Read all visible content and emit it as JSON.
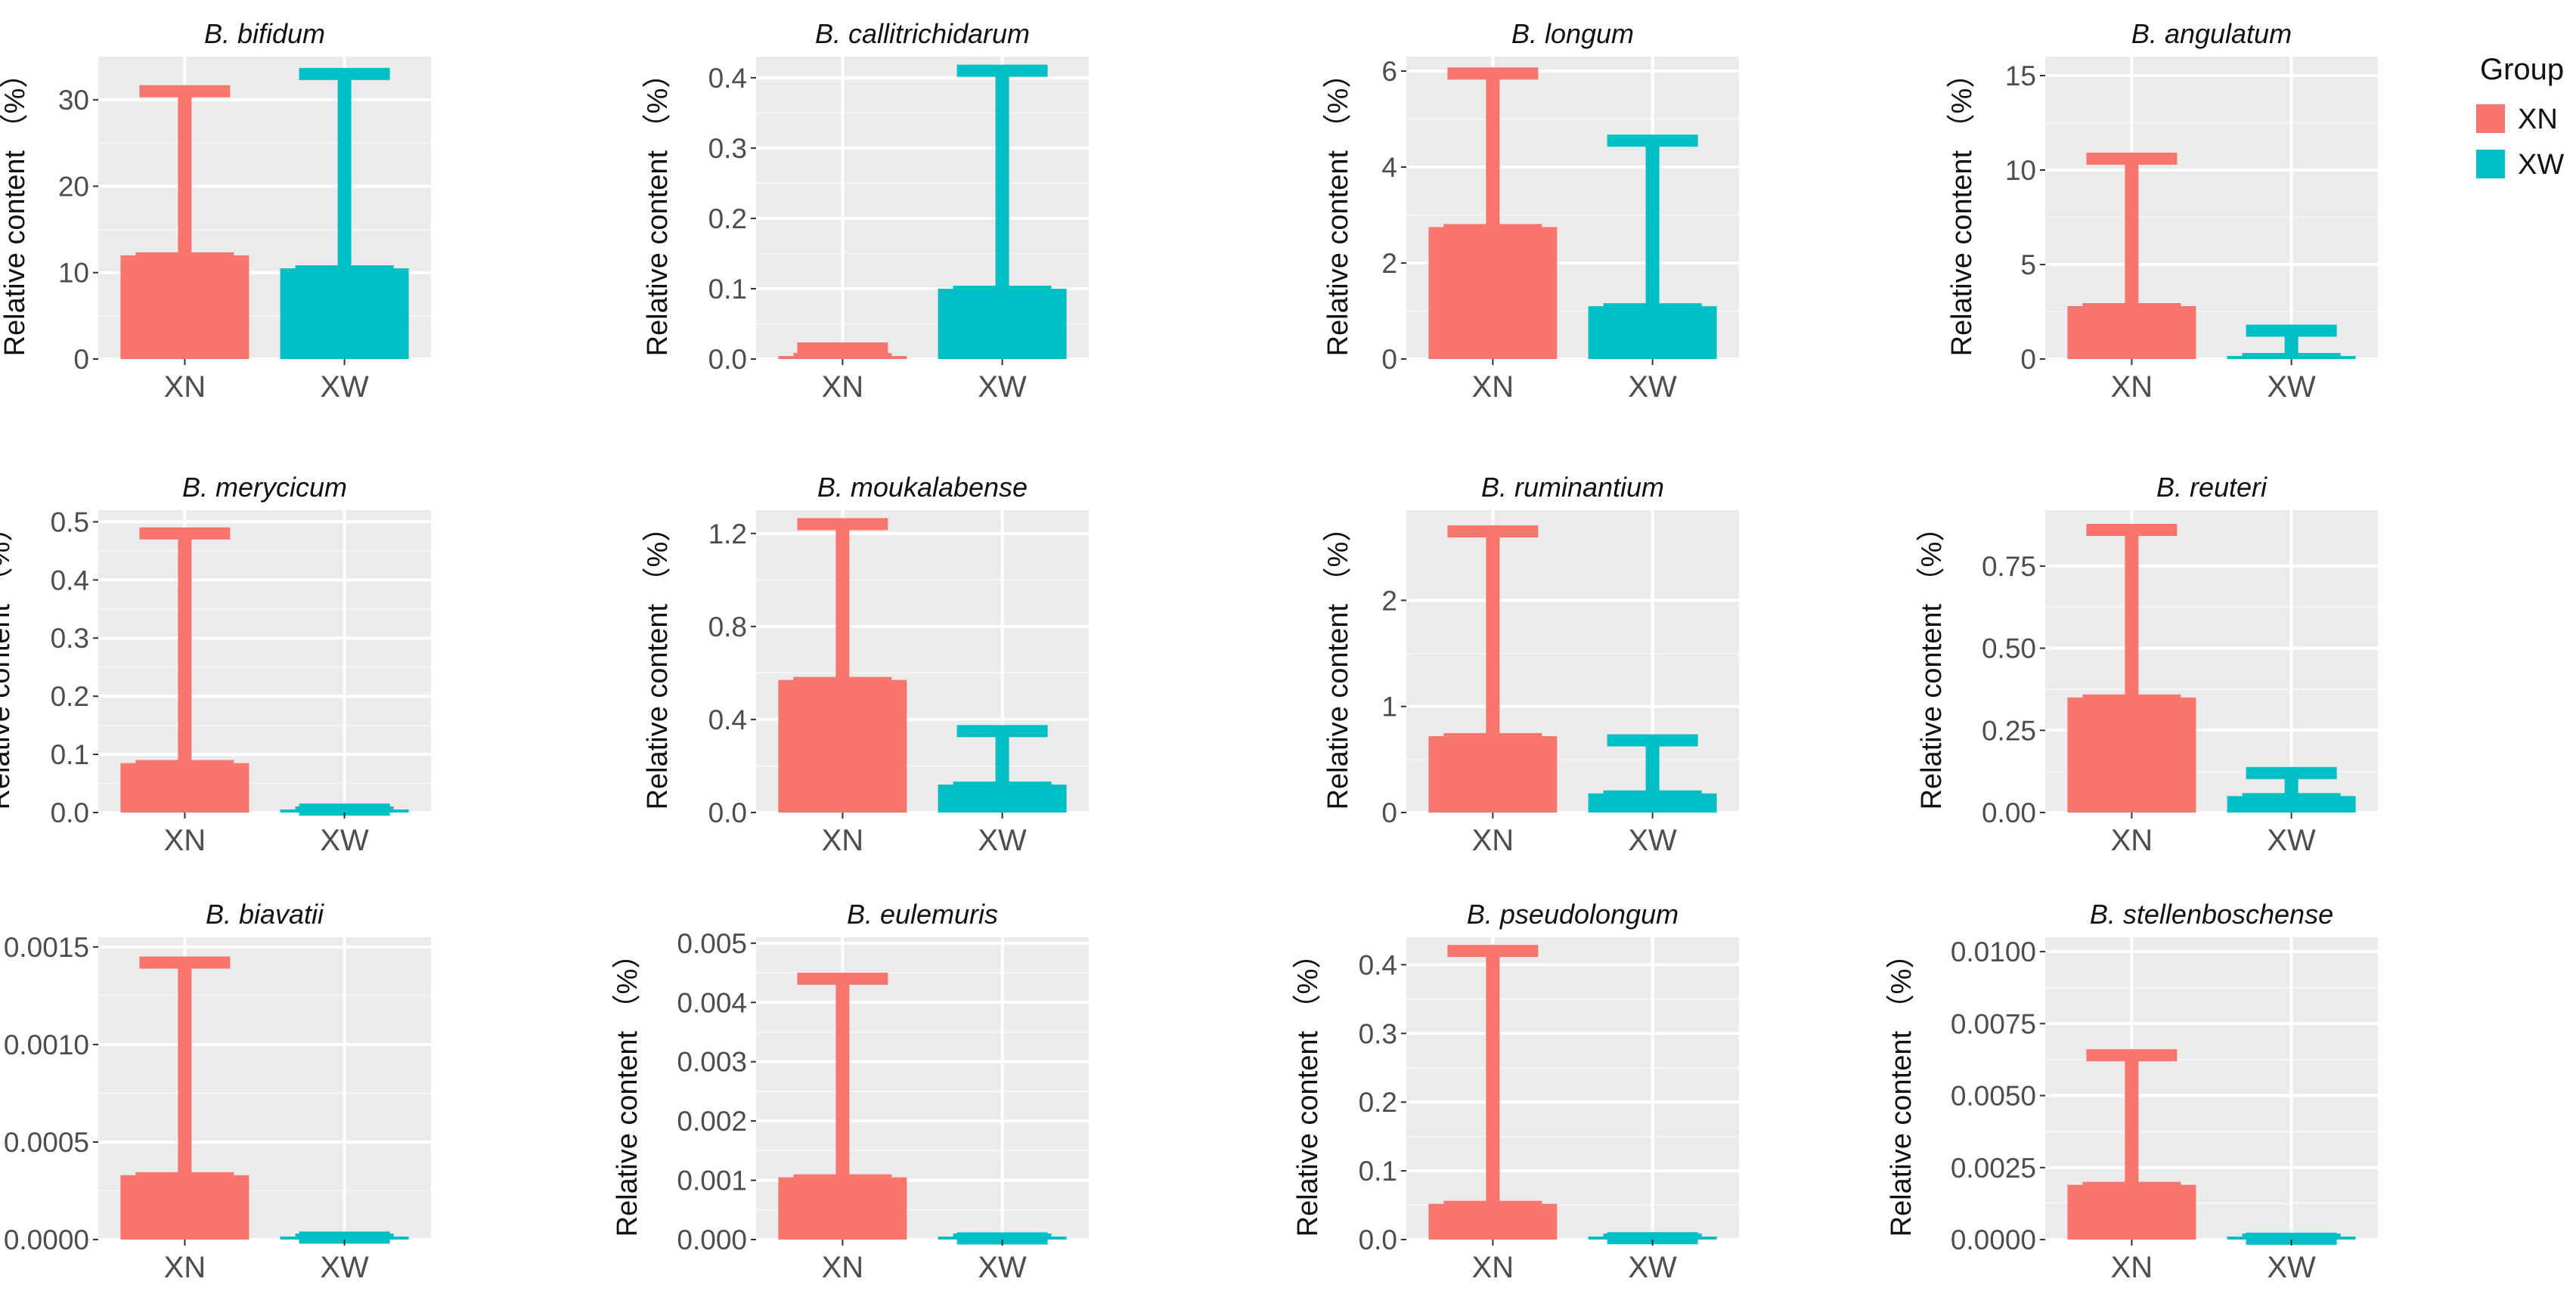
{
  "figure": {
    "y_axis_label": "Relative content （%）",
    "legend": {
      "title": "Group",
      "items": [
        {
          "label": "XN",
          "color": "#F8766D"
        },
        {
          "label": "XW",
          "color": "#00BFC4"
        }
      ]
    }
  },
  "chart_data": [
    {
      "type": "bar",
      "title": "B. bifidum",
      "categories": [
        "XN",
        "XW"
      ],
      "values": [
        12,
        10.5
      ],
      "error_upper": [
        31,
        33
      ],
      "ylim": [
        0,
        35
      ],
      "yticks": [
        0,
        10,
        20,
        30
      ],
      "ytick_labels": [
        "0",
        "10",
        "20",
        "30"
      ]
    },
    {
      "type": "bar",
      "title": "B. callitrichidarum",
      "categories": [
        "XN",
        "XW"
      ],
      "values": [
        0.002,
        0.1
      ],
      "error_upper": [
        0.015,
        0.41
      ],
      "ylim": [
        0,
        0.43
      ],
      "yticks": [
        0,
        0.1,
        0.2,
        0.3,
        0.4
      ],
      "ytick_labels": [
        "0.0",
        "0.1",
        "0.2",
        "0.3",
        "0.4"
      ]
    },
    {
      "type": "bar",
      "title": "B. longum",
      "categories": [
        "XN",
        "XW"
      ],
      "values": [
        2.75,
        1.1
      ],
      "error_upper": [
        5.95,
        4.55
      ],
      "ylim": [
        0,
        6.3
      ],
      "yticks": [
        0,
        2,
        4,
        6
      ],
      "ytick_labels": [
        "0",
        "2",
        "4",
        "6"
      ]
    },
    {
      "type": "bar",
      "title": "B. angulatum",
      "categories": [
        "XN",
        "XW"
      ],
      "values": [
        2.8,
        0.1
      ],
      "error_upper": [
        10.6,
        1.5
      ],
      "ylim": [
        0,
        16
      ],
      "yticks": [
        0,
        5,
        10,
        15
      ],
      "ytick_labels": [
        "0",
        "5",
        "10",
        "15"
      ]
    },
    {
      "type": "bar",
      "title": "B. merycicum",
      "categories": [
        "XN",
        "XW"
      ],
      "values": [
        0.085,
        0.0
      ],
      "error_upper": [
        0.48,
        0.005
      ],
      "ylim": [
        0,
        0.52
      ],
      "yticks": [
        0,
        0.1,
        0.2,
        0.3,
        0.4,
        0.5
      ],
      "ytick_labels": [
        "0.0",
        "0.1",
        "0.2",
        "0.3",
        "0.4",
        "0.5"
      ]
    },
    {
      "type": "bar",
      "title": "B. moukalabense",
      "categories": [
        "XN",
        "XW"
      ],
      "values": [
        0.57,
        0.12
      ],
      "error_upper": [
        1.24,
        0.35
      ],
      "ylim": [
        0,
        1.3
      ],
      "yticks": [
        0,
        0.4,
        0.8,
        1.2
      ],
      "ytick_labels": [
        "0.0",
        "0.4",
        "0.8",
        "1.2"
      ]
    },
    {
      "type": "bar",
      "title": "B. ruminantium",
      "categories": [
        "XN",
        "XW"
      ],
      "values": [
        0.72,
        0.18
      ],
      "error_upper": [
        2.65,
        0.68
      ],
      "ylim": [
        0,
        2.85
      ],
      "yticks": [
        0,
        1,
        2
      ],
      "ytick_labels": [
        "0",
        "1",
        "2"
      ]
    },
    {
      "type": "bar",
      "title": "B. reuteri",
      "categories": [
        "XN",
        "XW"
      ],
      "values": [
        0.35,
        0.05
      ],
      "error_upper": [
        0.86,
        0.12
      ],
      "ylim": [
        0,
        0.92
      ],
      "yticks": [
        0,
        0.25,
        0.5,
        0.75
      ],
      "ytick_labels": [
        "0.00",
        "0.25",
        "0.50",
        "0.75"
      ]
    },
    {
      "type": "bar",
      "title": "B. biavatii",
      "categories": [
        "XN",
        "XW"
      ],
      "values": [
        0.00033,
        0.0
      ],
      "error_upper": [
        0.00142,
        1e-05
      ],
      "ylim": [
        0,
        0.00155
      ],
      "yticks": [
        0,
        0.0005,
        0.001,
        0.0015
      ],
      "ytick_labels": [
        "0.0000",
        "0.0005",
        "0.0010",
        "0.0015"
      ]
    },
    {
      "type": "bar",
      "title": "B. eulemuris",
      "categories": [
        "XN",
        "XW"
      ],
      "values": [
        0.00105,
        0.0
      ],
      "error_upper": [
        0.0044,
        2e-05
      ],
      "ylim": [
        0,
        0.0051
      ],
      "yticks": [
        0,
        0.001,
        0.002,
        0.003,
        0.004,
        0.005
      ],
      "ytick_labels": [
        "0.000",
        "0.001",
        "0.002",
        "0.003",
        "0.004",
        "0.005"
      ]
    },
    {
      "type": "bar",
      "title": "B. pseudolongum",
      "categories": [
        "XN",
        "XW"
      ],
      "values": [
        0.052,
        0.0
      ],
      "error_upper": [
        0.42,
        0.002
      ],
      "ylim": [
        0,
        0.44
      ],
      "yticks": [
        0,
        0.1,
        0.2,
        0.3,
        0.4
      ],
      "ytick_labels": [
        "0.0",
        "0.1",
        "0.2",
        "0.3",
        "0.4"
      ]
    },
    {
      "type": "bar",
      "title": "B. stellenboschense",
      "categories": [
        "XN",
        "XW"
      ],
      "values": [
        0.0019,
        0.0
      ],
      "error_upper": [
        0.0064,
        3e-05
      ],
      "ylim": [
        0,
        0.0105
      ],
      "yticks": [
        0,
        0.0025,
        0.005,
        0.0075,
        0.01
      ],
      "ytick_labels": [
        "0.0000",
        "0.0025",
        "0.0050",
        "0.0075",
        "0.0100"
      ]
    }
  ]
}
